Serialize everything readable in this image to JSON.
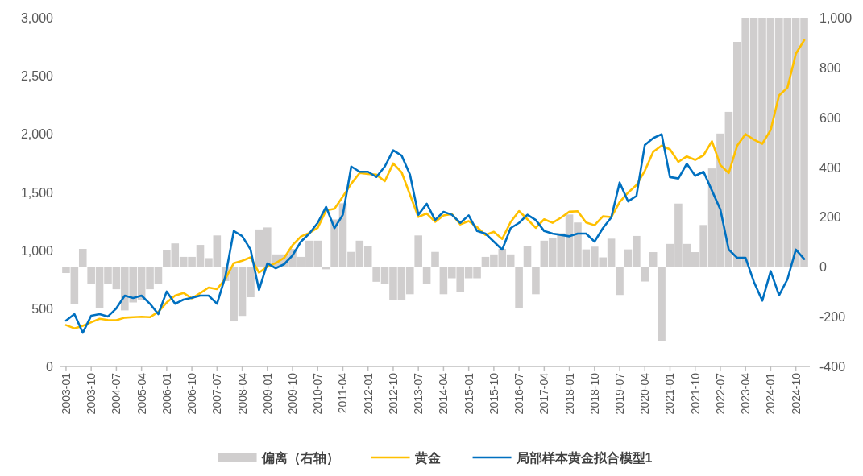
{
  "chart_data": {
    "type": "line",
    "x": [
      "2003-01",
      "2003-04",
      "2003-07",
      "2003-10",
      "2004-01",
      "2004-04",
      "2004-07",
      "2004-10",
      "2005-01",
      "2005-04",
      "2005-07",
      "2005-10",
      "2006-01",
      "2006-04",
      "2006-07",
      "2006-10",
      "2007-01",
      "2007-04",
      "2007-07",
      "2007-10",
      "2008-01",
      "2008-04",
      "2008-07",
      "2008-10",
      "2009-01",
      "2009-04",
      "2009-07",
      "2009-10",
      "2010-01",
      "2010-04",
      "2010-07",
      "2010-10",
      "2011-01",
      "2011-04",
      "2011-07",
      "2011-10",
      "2012-01",
      "2012-04",
      "2012-07",
      "2012-10",
      "2013-01",
      "2013-04",
      "2013-07",
      "2013-10",
      "2014-01",
      "2014-04",
      "2014-07",
      "2014-10",
      "2015-01",
      "2015-04",
      "2015-07",
      "2015-10",
      "2016-01",
      "2016-04",
      "2016-07",
      "2016-10",
      "2017-01",
      "2017-04",
      "2017-07",
      "2017-10",
      "2018-01",
      "2018-04",
      "2018-07",
      "2018-10",
      "2019-01",
      "2019-04",
      "2019-07",
      "2019-10",
      "2020-01",
      "2020-04",
      "2020-07",
      "2020-10",
      "2021-01",
      "2021-04",
      "2021-07",
      "2021-10",
      "2022-01",
      "2022-04",
      "2022-07",
      "2022-10",
      "2023-01",
      "2023-04",
      "2023-07",
      "2023-10",
      "2024-01",
      "2024-04",
      "2024-07",
      "2024-10",
      "2025-01"
    ],
    "xlim": [
      "2002-11",
      "2025-03"
    ],
    "xticks": [
      "2003-01",
      "2003-10",
      "2004-07",
      "2005-04",
      "2006-01",
      "2006-10",
      "2007-07",
      "2008-04",
      "2009-01",
      "2009-10",
      "2010-07",
      "2011-04",
      "2012-01",
      "2012-10",
      "2013-07",
      "2014-04",
      "2015-01",
      "2015-10",
      "2016-07",
      "2017-04",
      "2018-01",
      "2018-10",
      "2019-07",
      "2020-04",
      "2021-01",
      "2021-10",
      "2022-07",
      "2023-04",
      "2024-01",
      "2024-10"
    ],
    "ylim": [
      0,
      3000
    ],
    "yticks": [
      {
        "value": 0,
        "label": "0"
      },
      {
        "value": 500,
        "label": "500"
      },
      {
        "value": 1000,
        "label": "1,000"
      },
      {
        "value": 1500,
        "label": "1,500"
      },
      {
        "value": 2000,
        "label": "2,000"
      },
      {
        "value": 2500,
        "label": "2,500"
      },
      {
        "value": 3000,
        "label": "3,000"
      }
    ],
    "y2lim": [
      -400,
      1000
    ],
    "y2ticks": [
      -400,
      -200,
      0,
      200,
      400,
      600,
      800,
      {
        "value": 1000,
        "label": "1,000"
      }
    ],
    "grid": false,
    "legend": "bottom",
    "series": [
      {
        "name": "偏离（右轴）",
        "type": "bar",
        "axis": "y2",
        "color": "#d0cece",
        "values": [
          -25,
          -150,
          72,
          -68,
          -165,
          -68,
          -90,
          -175,
          -143,
          -133,
          -90,
          -68,
          67,
          94,
          40,
          40,
          88,
          35,
          126,
          -57,
          -219,
          -197,
          -122,
          150,
          158,
          50,
          50,
          72,
          40,
          105,
          105,
          -10,
          190,
          255,
          60,
          105,
          83,
          -60,
          -68,
          -133,
          -133,
          -110,
          126,
          -68,
          60,
          -110,
          -46,
          -100,
          -46,
          -46,
          40,
          50,
          72,
          50,
          -165,
          83,
          -110,
          105,
          115,
          135,
          210,
          178,
          70,
          81,
          38,
          113,
          -113,
          70,
          124,
          -59,
          59,
          -297,
          92,
          254,
          92,
          59,
          168,
          395,
          535,
          622,
          903,
          1000,
          1000,
          1000,
          1000,
          1000,
          1000,
          1000,
          1000
        ]
      },
      {
        "name": "黄金",
        "color": "#ffc000",
        "values": [
          356,
          328,
          350,
          380,
          410,
          400,
          398,
          420,
          424,
          428,
          424,
          470,
          550,
          610,
          633,
          586,
          631,
          679,
          665,
          754,
          889,
          909,
          939,
          807,
          858,
          890,
          934,
          1043,
          1118,
          1149,
          1193,
          1342,
          1356,
          1462,
          1572,
          1665,
          1656,
          1650,
          1594,
          1747,
          1671,
          1477,
          1286,
          1316,
          1244,
          1299,
          1311,
          1222,
          1251,
          1199,
          1131,
          1159,
          1097,
          1242,
          1337,
          1266,
          1192,
          1266,
          1236,
          1280,
          1331,
          1335,
          1238,
          1215,
          1291,
          1285,
          1414,
          1495,
          1560,
          1683,
          1846,
          1900,
          1867,
          1760,
          1807,
          1777,
          1817,
          1937,
          1733,
          1664,
          1898,
          1999,
          1951,
          1916,
          2034,
          2331,
          2398,
          2690,
          2807
        ]
      },
      {
        "name": "局部样本黄金拟合模型1",
        "color": "#0070c0",
        "values": [
          395,
          450,
          290,
          437,
          450,
          430,
          500,
          610,
          589,
          610,
          540,
          450,
          645,
          540,
          575,
          590,
          610,
          610,
          540,
          776,
          1165,
          1122,
          1005,
          658,
          887,
          845,
          880,
          956,
          1074,
          1143,
          1235,
          1373,
          1190,
          1305,
          1720,
          1675,
          1675,
          1630,
          1720,
          1860,
          1815,
          1650,
          1305,
          1400,
          1260,
          1330,
          1305,
          1235,
          1300,
          1165,
          1143,
          1074,
          1005,
          1190,
          1235,
          1305,
          1260,
          1165,
          1143,
          1132,
          1120,
          1143,
          1143,
          1074,
          1190,
          1282,
          1582,
          1420,
          1467,
          1906,
          1964,
          1998,
          1629,
          1617,
          1744,
          1640,
          1675,
          1513,
          1351,
          1005,
          935,
          935,
          728,
          566,
          820,
          612,
          750,
          1005,
          924
        ]
      }
    ]
  }
}
